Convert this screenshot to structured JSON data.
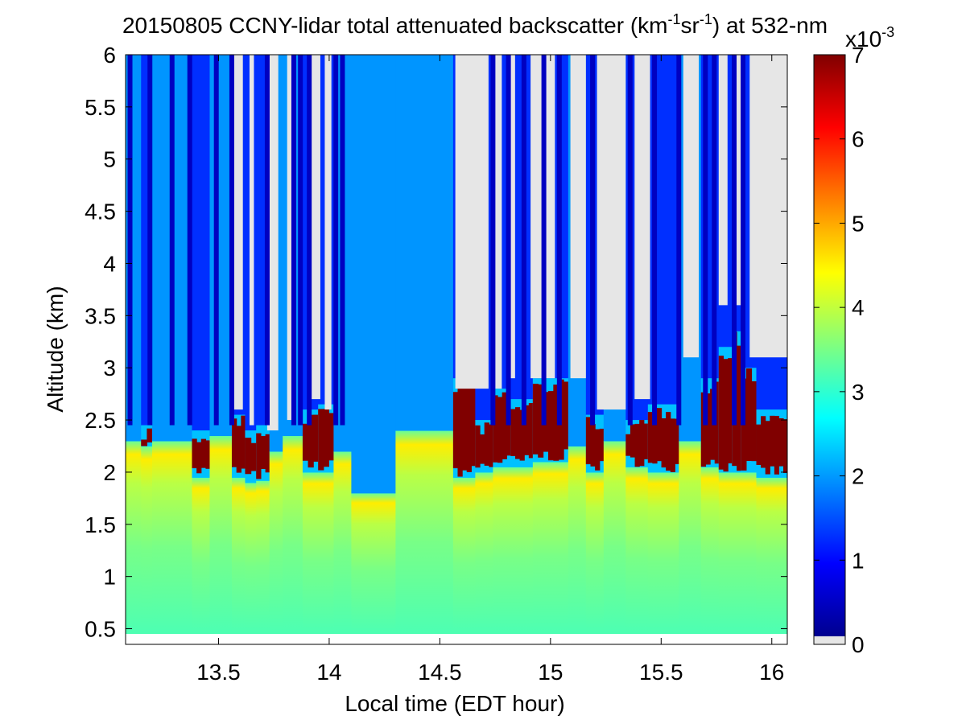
{
  "chart_data": {
    "type": "heatmap",
    "title": {
      "prefix": "20150805 CCNY-lidar total attenuated backscatter (km",
      "sup1": "-1",
      "mid": "sr",
      "sup2": "-1",
      "suffix": ") at 532-nm"
    },
    "xlabel": "Local time (EDT hour)",
    "ylabel": "Altitude (km)",
    "xlim": [
      13.08,
      16.07
    ],
    "ylim": [
      0.35,
      6.0
    ],
    "xticks": [
      13.5,
      14,
      14.5,
      15,
      15.5,
      16
    ],
    "xtick_labels": [
      "13.5",
      "14",
      "14.5",
      "15",
      "15.5",
      "16"
    ],
    "yticks": [
      0.5,
      1,
      1.5,
      2,
      2.5,
      3,
      3.5,
      4,
      4.5,
      5,
      5.5,
      6
    ],
    "ytick_labels": [
      "0.5",
      "1",
      "1.5",
      "2",
      "2.5",
      "3",
      "3.5",
      "4",
      "4.5",
      "5",
      "5.5",
      "6"
    ],
    "data_bottom_altitude": 0.45,
    "colorbar": {
      "range": [
        0,
        7
      ],
      "ticks": [
        0,
        1,
        2,
        3,
        4,
        5,
        6,
        7
      ],
      "tick_labels": [
        "0",
        "1",
        "2",
        "3",
        "4",
        "5",
        "6",
        "7"
      ],
      "exponent_base": "x10",
      "exponent": "-3",
      "colormap": "jet",
      "no_data_color": "#e6e6e6"
    },
    "profile_columns": [
      {
        "x0": 13.08,
        "x1": 13.15,
        "kind": "sky",
        "boundary": 2.3,
        "top": 6.0
      },
      {
        "x0": 13.15,
        "x1": 13.2,
        "kind": "cloud",
        "boundary": 2.25,
        "top": 2.45
      },
      {
        "x0": 13.2,
        "x1": 13.38,
        "kind": "sky",
        "boundary": 2.3,
        "top": 6.0
      },
      {
        "x0": 13.38,
        "x1": 13.46,
        "kind": "cloud",
        "boundary": 1.95,
        "top": 2.4
      },
      {
        "x0": 13.46,
        "x1": 13.56,
        "kind": "sky",
        "boundary": 2.35,
        "top": 6.0
      },
      {
        "x0": 13.56,
        "x1": 13.62,
        "kind": "cloud",
        "boundary": 1.95,
        "top": 2.55
      },
      {
        "x0": 13.62,
        "x1": 13.67,
        "kind": "cloud",
        "boundary": 1.9,
        "top": 2.4
      },
      {
        "x0": 13.67,
        "x1": 13.73,
        "kind": "cloud",
        "boundary": 1.92,
        "top": 2.45
      },
      {
        "x0": 13.73,
        "x1": 13.79,
        "kind": "sky",
        "boundary": 2.2,
        "top": 6.0
      },
      {
        "x0": 13.79,
        "x1": 13.88,
        "kind": "sky",
        "boundary": 2.35,
        "top": 6.0
      },
      {
        "x0": 13.88,
        "x1": 13.95,
        "kind": "cloud",
        "boundary": 2.0,
        "top": 2.6
      },
      {
        "x0": 13.95,
        "x1": 14.02,
        "kind": "cloud",
        "boundary": 2.0,
        "top": 2.65
      },
      {
        "x0": 14.02,
        "x1": 14.1,
        "kind": "sky",
        "boundary": 2.2,
        "top": 6.0
      },
      {
        "x0": 14.1,
        "x1": 14.3,
        "kind": "sky",
        "boundary": 1.8,
        "top": 6.0
      },
      {
        "x0": 14.3,
        "x1": 14.56,
        "kind": "sky",
        "boundary": 2.4,
        "top": 6.0
      },
      {
        "x0": 14.56,
        "x1": 14.66,
        "kind": "cloud",
        "boundary": 1.95,
        "top": 2.9
      },
      {
        "x0": 14.66,
        "x1": 14.74,
        "kind": "cloud",
        "boundary": 2.0,
        "top": 2.5
      },
      {
        "x0": 14.74,
        "x1": 14.82,
        "kind": "cloud",
        "boundary": 2.05,
        "top": 2.8
      },
      {
        "x0": 14.82,
        "x1": 14.92,
        "kind": "cloud",
        "boundary": 2.05,
        "top": 2.7
      },
      {
        "x0": 14.92,
        "x1": 15.08,
        "kind": "cloud",
        "boundary": 2.1,
        "top": 2.9
      },
      {
        "x0": 15.08,
        "x1": 15.16,
        "kind": "sky",
        "boundary": 2.25,
        "top": 6.0
      },
      {
        "x0": 15.16,
        "x1": 15.24,
        "kind": "cloud",
        "boundary": 2.0,
        "top": 2.55
      },
      {
        "x0": 15.24,
        "x1": 15.34,
        "kind": "sky",
        "boundary": 2.3,
        "top": 6.0
      },
      {
        "x0": 15.34,
        "x1": 15.44,
        "kind": "cloud",
        "boundary": 2.05,
        "top": 2.5
      },
      {
        "x0": 15.44,
        "x1": 15.58,
        "kind": "cloud",
        "boundary": 2.0,
        "top": 2.65
      },
      {
        "x0": 15.58,
        "x1": 15.68,
        "kind": "sky",
        "boundary": 2.3,
        "top": 6.0
      },
      {
        "x0": 15.68,
        "x1": 15.76,
        "kind": "cloud",
        "boundary": 2.05,
        "top": 2.9
      },
      {
        "x0": 15.76,
        "x1": 15.82,
        "kind": "cloud",
        "boundary": 2.0,
        "top": 3.2
      },
      {
        "x0": 15.82,
        "x1": 15.86,
        "kind": "cloud",
        "boundary": 2.0,
        "top": 3.35
      },
      {
        "x0": 15.86,
        "x1": 15.93,
        "kind": "cloud",
        "boundary": 2.0,
        "top": 3.0
      },
      {
        "x0": 15.93,
        "x1": 16.07,
        "kind": "cloud",
        "boundary": 1.95,
        "top": 2.6
      }
    ],
    "no_data_bands": [
      {
        "x0": 13.57,
        "x1": 13.61,
        "from_altitude": 2.6
      },
      {
        "x0": 13.64,
        "x1": 13.66,
        "from_altitude": 2.45
      },
      {
        "x0": 13.72,
        "x1": 13.77,
        "from_altitude": 2.4
      },
      {
        "x0": 13.81,
        "x1": 13.85,
        "from_altitude": 2.5
      },
      {
        "x0": 13.92,
        "x1": 13.96,
        "from_altitude": 2.7
      },
      {
        "x0": 13.98,
        "x1": 14.01,
        "from_altitude": 2.6
      },
      {
        "x0": 14.57,
        "x1": 14.72,
        "from_altitude": 2.8
      },
      {
        "x0": 14.75,
        "x1": 14.78,
        "from_altitude": 2.8
      },
      {
        "x0": 14.81,
        "x1": 14.84,
        "from_altitude": 2.9
      },
      {
        "x0": 14.91,
        "x1": 15.02,
        "from_altitude": 2.9
      },
      {
        "x0": 15.09,
        "x1": 15.16,
        "from_altitude": 2.9
      },
      {
        "x0": 15.21,
        "x1": 15.34,
        "from_altitude": 2.6
      },
      {
        "x0": 15.38,
        "x1": 15.45,
        "from_altitude": 2.7
      },
      {
        "x0": 15.6,
        "x1": 15.67,
        "from_altitude": 3.1
      },
      {
        "x0": 15.76,
        "x1": 15.8,
        "from_altitude": 3.6
      },
      {
        "x0": 15.83,
        "x1": 15.86,
        "from_altitude": 3.6
      },
      {
        "x0": 15.9,
        "x1": 16.07,
        "from_altitude": 3.1
      }
    ],
    "dark_blue_streaks": [
      13.1,
      13.19,
      13.29,
      13.37,
      13.49,
      13.56,
      13.72,
      13.84,
      13.87,
      13.91,
      14.03,
      14.06,
      14.74,
      14.81,
      14.88,
      14.97,
      15.04,
      15.19,
      15.36,
      15.47,
      15.58,
      15.7,
      15.74,
      15.83,
      15.87
    ]
  }
}
